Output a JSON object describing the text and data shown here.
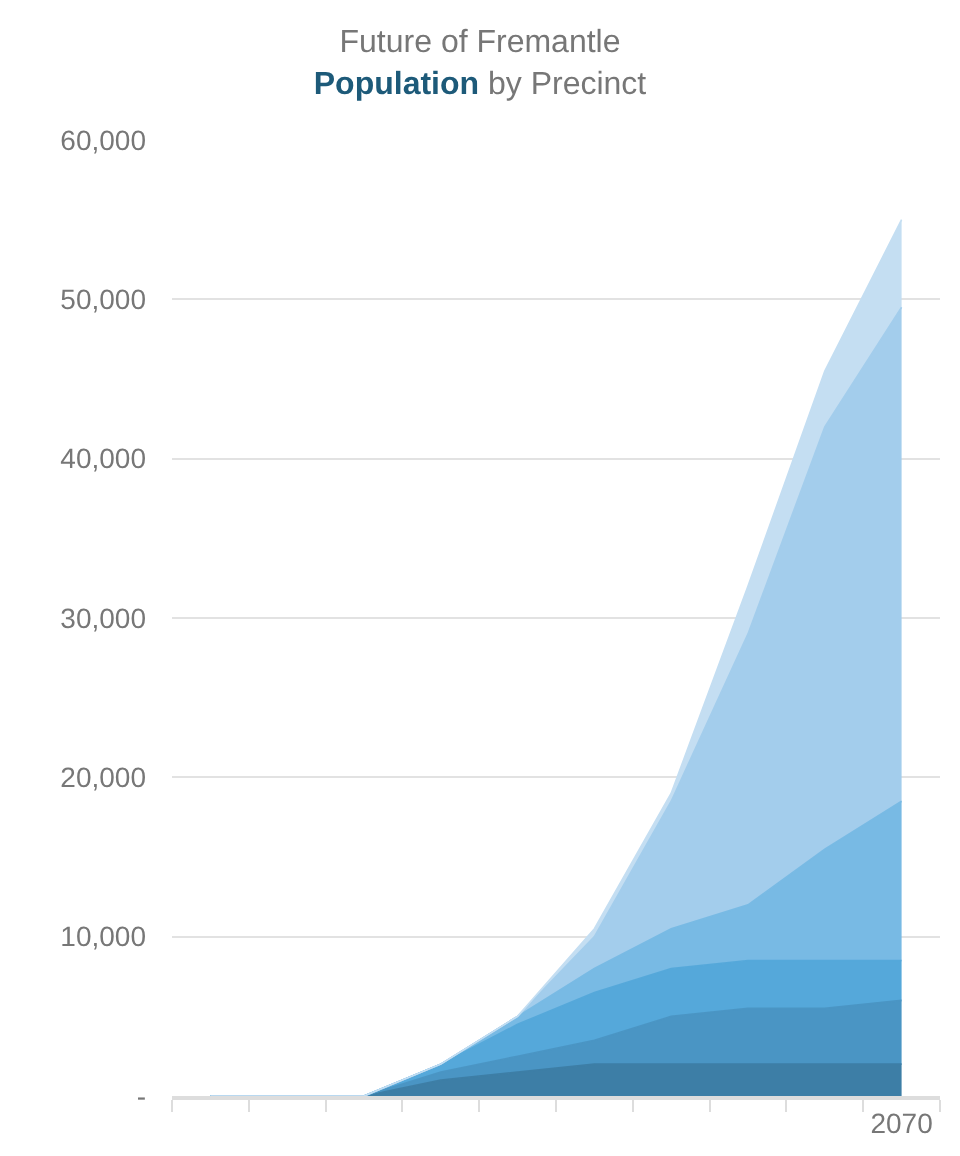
{
  "chart_data": {
    "type": "area",
    "stacked": true,
    "title": "Future of Fremantle",
    "subtitle": "Population by Precinct",
    "categories": [
      null,
      null,
      null,
      null,
      null,
      null,
      null,
      null,
      null,
      "2070"
    ],
    "series": [
      {
        "color": "#3d7ea6",
        "values": [
          0,
          0,
          0,
          1000,
          1500,
          2000,
          2000,
          2000,
          2000,
          2000
        ]
      },
      {
        "color": "#4a95c4",
        "values": [
          0,
          0,
          0,
          500,
          1000,
          1500,
          3000,
          3500,
          3500,
          4000
        ]
      },
      {
        "color": "#55a8da",
        "values": [
          0,
          0,
          0,
          500,
          2000,
          3000,
          3000,
          3000,
          3000,
          2500
        ]
      },
      {
        "color": "#78bae4",
        "values": [
          0,
          0,
          0,
          0,
          500,
          1500,
          2500,
          3500,
          7000,
          10000
        ]
      },
      {
        "color": "#a3cdec",
        "values": [
          0,
          0,
          0,
          0,
          0,
          2000,
          8000,
          17000,
          26500,
          31000
        ]
      },
      {
        "color": "#c4def2",
        "values": [
          0,
          0,
          0,
          0,
          0,
          500,
          500,
          3000,
          3500,
          5500
        ]
      }
    ],
    "ylim": [
      0,
      60000
    ],
    "yticks": [
      {
        "value": 0,
        "label": "-"
      },
      {
        "value": 10000,
        "label": "10,000"
      },
      {
        "value": 20000,
        "label": "20,000"
      },
      {
        "value": 30000,
        "label": "30,000"
      },
      {
        "value": 40000,
        "label": "40,000"
      },
      {
        "value": 50000,
        "label": "50,000"
      },
      {
        "value": 60000,
        "label": "60,000"
      }
    ],
    "grid": "y"
  }
}
